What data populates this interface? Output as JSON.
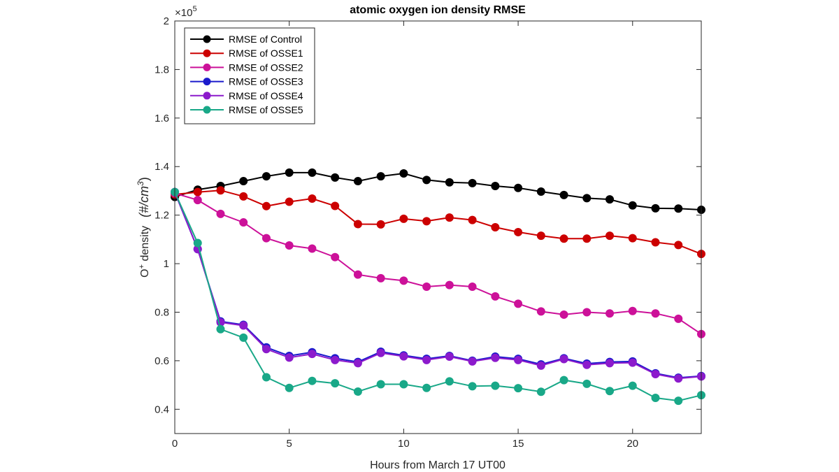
{
  "chart_data": {
    "type": "line",
    "title": "atomic oxygen ion density RMSE",
    "xlabel": "Hours from March 17 UT00",
    "ylabel_prefix": "O",
    "ylabel_sup": "+",
    "ylabel_mid": " density",
    "ylabel_unit": "(#/cm",
    "ylabel_unit_sup": "3",
    "ylabel_unit_close": ")",
    "exponent_base": "×10",
    "exponent_power": "5",
    "xlim": [
      0,
      23
    ],
    "ylim": [
      0.3,
      2.0
    ],
    "xticks": [
      0,
      5,
      10,
      15,
      20
    ],
    "yticks": [
      0.4,
      0.6,
      0.8,
      1.0,
      1.2,
      1.4,
      1.6,
      1.8,
      2.0
    ],
    "ytick_labels": [
      "0.4",
      "0.6",
      "0.8",
      "1",
      "1.2",
      "1.4",
      "1.6",
      "1.8",
      "2"
    ],
    "legend_position": "top-left",
    "x": [
      0,
      1,
      2,
      3,
      4,
      5,
      6,
      7,
      8,
      9,
      10,
      11,
      12,
      13,
      14,
      15,
      16,
      17,
      18,
      19,
      20,
      21,
      22,
      23
    ],
    "series": [
      {
        "name": "RMSE of Control",
        "color": "#000000",
        "values": [
          1.275,
          1.305,
          1.32,
          1.34,
          1.36,
          1.375,
          1.375,
          1.355,
          1.34,
          1.36,
          1.372,
          1.345,
          1.335,
          1.332,
          1.32,
          1.312,
          1.297,
          1.283,
          1.27,
          1.265,
          1.24,
          1.228,
          1.227,
          1.222
        ]
      },
      {
        "name": "RMSE of OSSE1",
        "color": "#cc0000",
        "values": [
          1.285,
          1.295,
          1.302,
          1.277,
          1.237,
          1.255,
          1.268,
          1.238,
          1.163,
          1.162,
          1.185,
          1.175,
          1.19,
          1.18,
          1.15,
          1.13,
          1.115,
          1.103,
          1.103,
          1.115,
          1.105,
          1.088,
          1.077,
          1.04
        ]
      },
      {
        "name": "RMSE of OSSE2",
        "color": "#cc1199",
        "values": [
          1.29,
          1.262,
          1.205,
          1.17,
          1.105,
          1.075,
          1.062,
          1.027,
          0.955,
          0.94,
          0.93,
          0.905,
          0.912,
          0.905,
          0.865,
          0.835,
          0.803,
          0.79,
          0.8,
          0.795,
          0.805,
          0.795,
          0.773,
          0.71
        ]
      },
      {
        "name": "RMSE of OSSE3",
        "color": "#1a1acc",
        "values": [
          1.295,
          1.06,
          0.762,
          0.748,
          0.655,
          0.62,
          0.635,
          0.61,
          0.595,
          0.637,
          0.622,
          0.608,
          0.62,
          0.6,
          0.617,
          0.608,
          0.585,
          0.61,
          0.588,
          0.595,
          0.597,
          0.548,
          0.53,
          0.537
        ]
      },
      {
        "name": "RMSE of OSSE4",
        "color": "#8c1acc",
        "values": [
          1.295,
          1.06,
          0.758,
          0.745,
          0.648,
          0.613,
          0.628,
          0.603,
          0.59,
          0.632,
          0.618,
          0.603,
          0.617,
          0.597,
          0.612,
          0.603,
          0.58,
          0.607,
          0.583,
          0.59,
          0.592,
          0.545,
          0.527,
          0.535
        ]
      },
      {
        "name": "RMSE of OSSE5",
        "color": "#19a888",
        "values": [
          1.295,
          1.085,
          0.73,
          0.695,
          0.532,
          0.488,
          0.517,
          0.507,
          0.473,
          0.503,
          0.503,
          0.488,
          0.515,
          0.495,
          0.497,
          0.487,
          0.472,
          0.52,
          0.505,
          0.475,
          0.497,
          0.447,
          0.435,
          0.458
        ]
      }
    ]
  }
}
